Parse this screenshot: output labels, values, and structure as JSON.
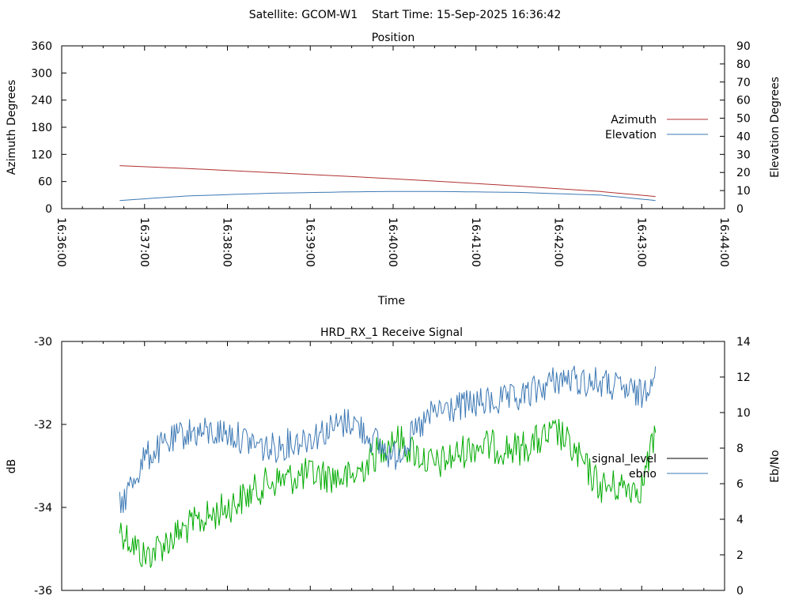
{
  "header": {
    "title": "Satellite: GCOM-W1    Start Time: 15-Sep-2025 16:36:42"
  },
  "colors": {
    "azimuth": "#b03030",
    "elevation": "#3c78b4",
    "signal_level": "#000000",
    "ebno": "#3c78b4",
    "green_trace": "#00aa00"
  },
  "chart_data": [
    {
      "type": "line",
      "title": "Position",
      "xlabel": "Time",
      "ylabel": "Azimuth Degrees",
      "y2label": "Elevation Degrees",
      "xlim": [
        "16:36:00",
        "16:44:00"
      ],
      "x_ticks": [
        "16:36:00",
        "16:37:00",
        "16:38:00",
        "16:39:00",
        "16:40:00",
        "16:41:00",
        "16:42:00",
        "16:43:00",
        "16:44:00"
      ],
      "ylim": [
        0,
        360
      ],
      "y_ticks": [
        0,
        60,
        120,
        180,
        240,
        300,
        360
      ],
      "y2lim": [
        0,
        90
      ],
      "y2_ticks": [
        0,
        10,
        20,
        30,
        40,
        50,
        60,
        70,
        80,
        90
      ],
      "legend_position": "right",
      "series": [
        {
          "name": "Azimuth",
          "axis": "left",
          "x": [
            "16:36:42",
            "16:37:30",
            "16:38:30",
            "16:39:30",
            "16:40:30",
            "16:41:30",
            "16:42:30",
            "16:43:10"
          ],
          "values": [
            95,
            89,
            80,
            71,
            61,
            50,
            38,
            27
          ]
        },
        {
          "name": "Elevation",
          "axis": "right",
          "x": [
            "16:36:42",
            "16:37:30",
            "16:38:30",
            "16:39:30",
            "16:40:00",
            "16:40:30",
            "16:41:30",
            "16:42:30",
            "16:43:10"
          ],
          "values": [
            4.5,
            7,
            8.5,
            9.3,
            9.5,
            9.5,
            9,
            7.5,
            4.5
          ]
        }
      ]
    },
    {
      "type": "line",
      "title": "HRD_RX_1 Receive Signal",
      "ylabel": "dB",
      "y2label": "Eb/No",
      "xlim": [
        "16:36:00",
        "16:44:00"
      ],
      "ylim": [
        -36,
        -30
      ],
      "y_ticks": [
        -36,
        -34,
        -32,
        -30
      ],
      "y2lim": [
        0,
        14
      ],
      "y2_ticks": [
        0,
        2,
        4,
        6,
        8,
        10,
        12,
        14
      ],
      "legend_position": "right",
      "legend_entries": [
        "signal_level",
        "ebno"
      ],
      "green_trace": {
        "x": [
          "16:36:42",
          "16:37:00",
          "16:37:30",
          "16:38:00",
          "16:38:30",
          "16:39:00",
          "16:39:30",
          "16:40:00",
          "16:40:30",
          "16:41:00",
          "16:41:30",
          "16:42:00",
          "16:42:30",
          "16:43:00",
          "16:43:10"
        ],
        "values": [
          -34.5,
          -35.2,
          -34.5,
          -34.0,
          -33.4,
          -33.2,
          -33.3,
          -32.3,
          -33.0,
          -32.5,
          -32.6,
          -32.2,
          -33.5,
          -33.5,
          -32.2
        ]
      },
      "blue_trace": {
        "x": [
          "16:36:42",
          "16:37:00",
          "16:37:30",
          "16:38:00",
          "16:38:30",
          "16:39:00",
          "16:39:30",
          "16:40:00",
          "16:40:30",
          "16:41:00",
          "16:41:30",
          "16:42:00",
          "16:42:30",
          "16:43:00",
          "16:43:10"
        ],
        "values": [
          -34.0,
          -32.8,
          -32.2,
          -32.2,
          -32.6,
          -32.3,
          -31.9,
          -32.8,
          -31.7,
          -31.5,
          -31.4,
          -30.9,
          -31.0,
          -31.3,
          -30.6
        ]
      }
    }
  ]
}
